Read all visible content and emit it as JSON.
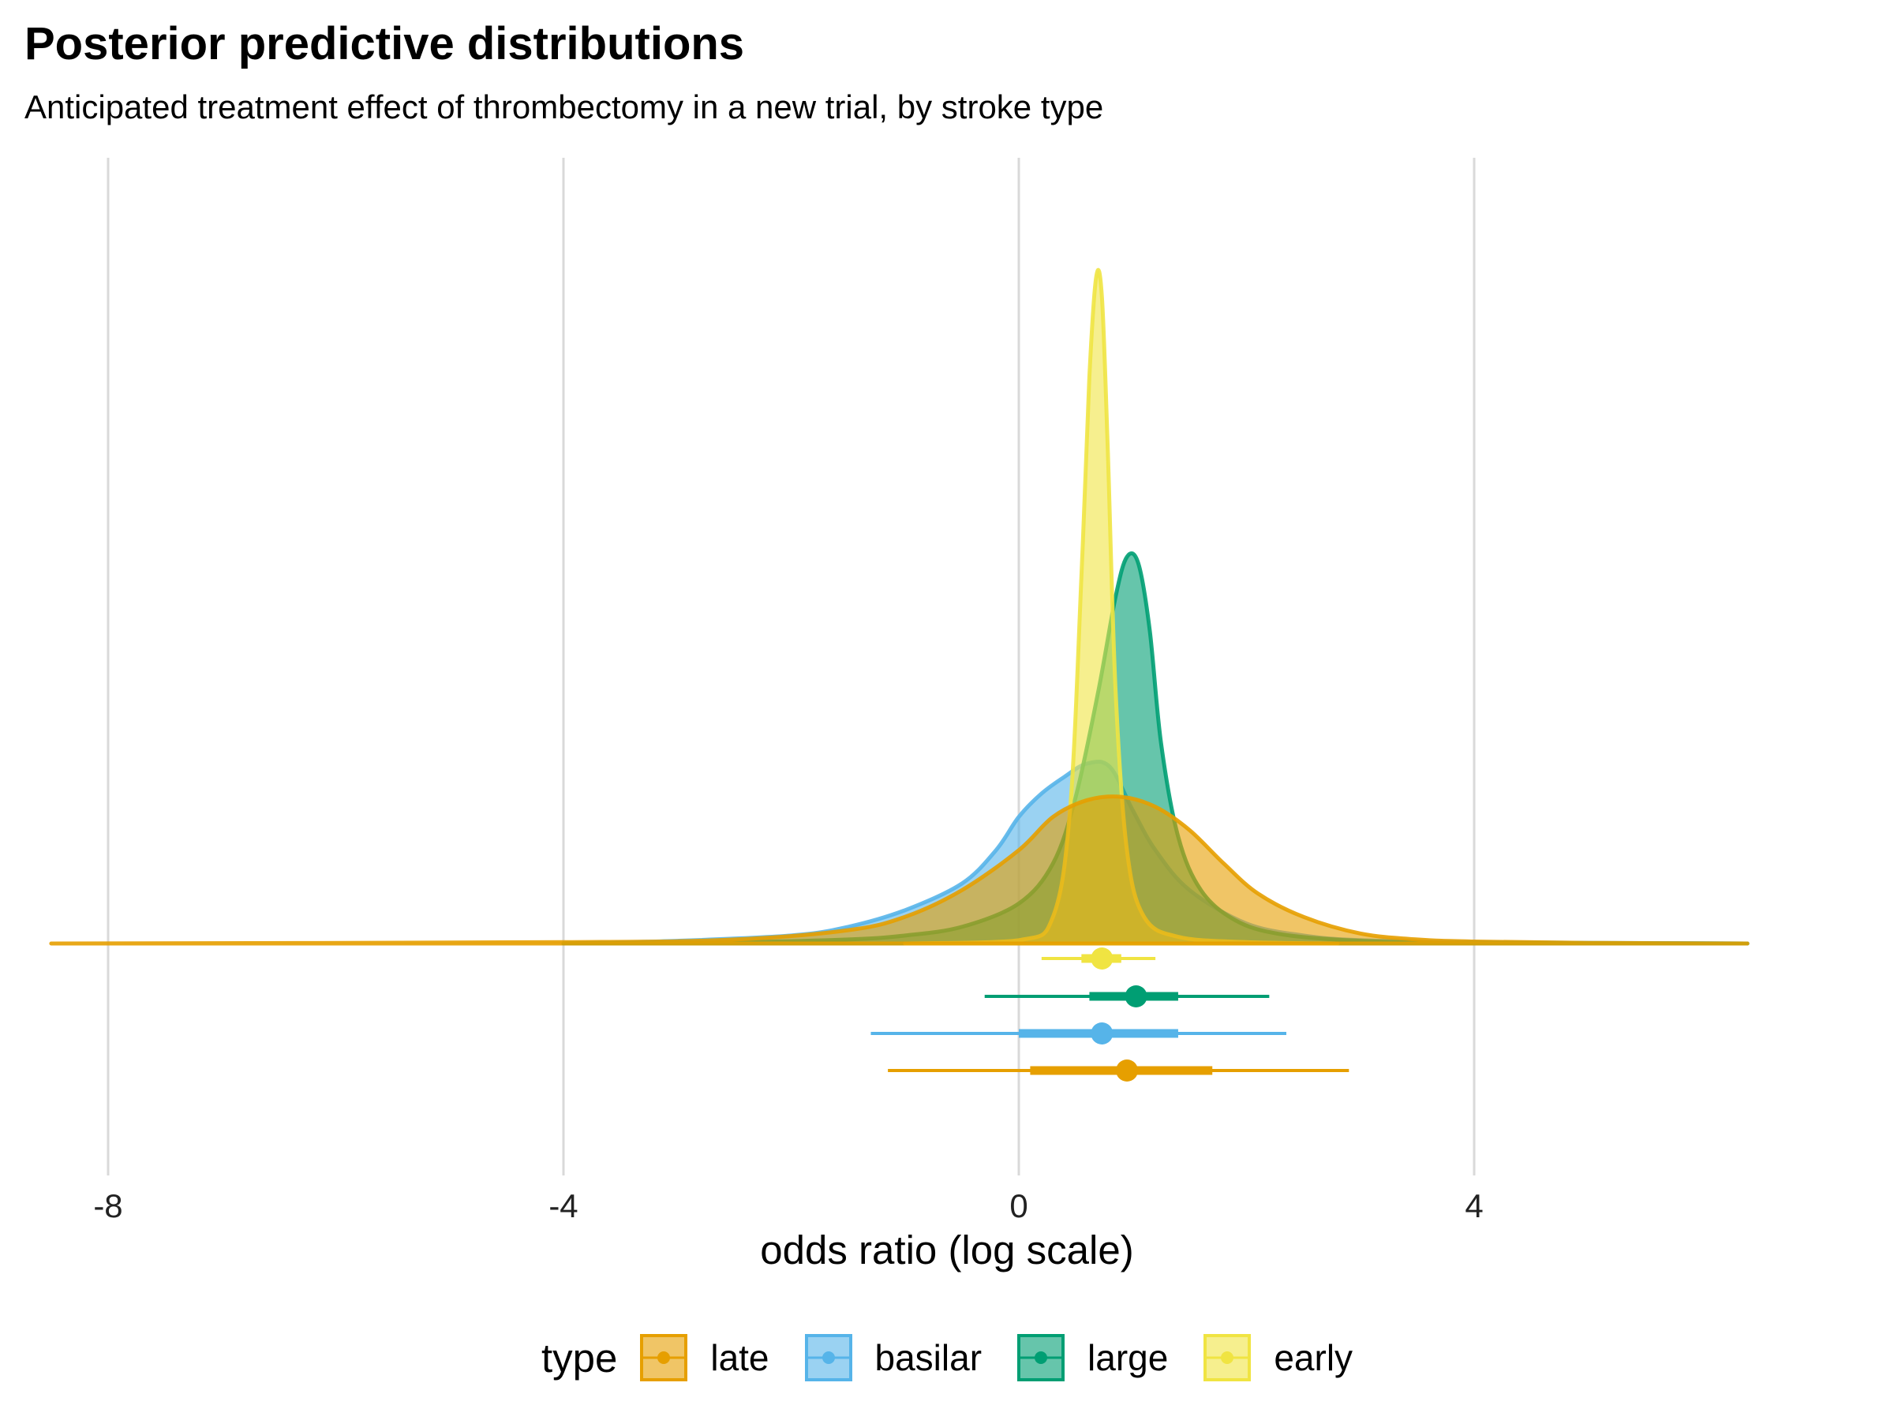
{
  "chart_data": {
    "type": "area",
    "title": "Posterior predictive distributions",
    "subtitle": "Anticipated treatment effect of thrombectomy in a new trial, by stroke type",
    "xlabel": "odds ratio (log scale)",
    "ylabel": "",
    "xlim": [
      -8.5,
      6.4
    ],
    "x_ticks": [
      -8,
      -4,
      0,
      4
    ],
    "x_tick_labels": [
      "-8",
      "-4",
      "0",
      "4"
    ],
    "grid": "vertical-major",
    "legend": {
      "title": "type",
      "position": "bottom"
    },
    "series": [
      {
        "name": "late",
        "color": "#E69F00",
        "density": {
          "x": [
            -8.5,
            -4.0,
            -2.5,
            -1.5,
            -1.0,
            -0.5,
            0.0,
            0.3,
            0.6,
            0.9,
            1.2,
            1.5,
            1.8,
            2.1,
            2.5,
            3.0,
            3.5,
            4.0,
            5.0,
            6.4
          ],
          "y": [
            0.0,
            0.002,
            0.006,
            0.02,
            0.04,
            0.08,
            0.14,
            0.19,
            0.215,
            0.22,
            0.205,
            0.17,
            0.12,
            0.075,
            0.04,
            0.015,
            0.006,
            0.003,
            0.001,
            0.0
          ]
        },
        "interval": {
          "point": 0.95,
          "inner": [
            0.1,
            1.7
          ],
          "outer": [
            -1.15,
            2.9
          ]
        }
      },
      {
        "name": "basilar",
        "color": "#56B4E9",
        "density": {
          "x": [
            -4.0,
            -3.0,
            -2.0,
            -1.5,
            -1.0,
            -0.5,
            -0.2,
            0.0,
            0.2,
            0.4,
            0.6,
            0.8,
            1.0,
            1.2,
            1.5,
            2.0,
            2.5,
            3.0,
            4.0,
            6.4
          ],
          "y": [
            0.0,
            0.004,
            0.012,
            0.025,
            0.05,
            0.09,
            0.14,
            0.19,
            0.225,
            0.25,
            0.27,
            0.265,
            0.2,
            0.14,
            0.08,
            0.03,
            0.012,
            0.005,
            0.002,
            0.0
          ]
        },
        "interval": {
          "point": 0.73,
          "inner": [
            0.0,
            1.4
          ],
          "outer": [
            -1.3,
            2.35
          ]
        }
      },
      {
        "name": "large",
        "color": "#009E73",
        "density": {
          "x": [
            -4.0,
            -2.5,
            -1.5,
            -1.0,
            -0.5,
            0.0,
            0.3,
            0.5,
            0.7,
            0.85,
            0.95,
            1.05,
            1.15,
            1.25,
            1.4,
            1.6,
            1.9,
            2.3,
            3.0,
            4.0,
            6.4
          ],
          "y": [
            0.0,
            0.002,
            0.006,
            0.012,
            0.025,
            0.06,
            0.12,
            0.22,
            0.38,
            0.52,
            0.58,
            0.57,
            0.47,
            0.3,
            0.16,
            0.08,
            0.035,
            0.014,
            0.004,
            0.001,
            0.0
          ]
        },
        "interval": {
          "point": 1.03,
          "inner": [
            0.62,
            1.4
          ],
          "outer": [
            -0.3,
            2.2
          ]
        }
      },
      {
        "name": "early",
        "color": "#F0E442",
        "density": {
          "x": [
            -1.0,
            0.0,
            0.3,
            0.45,
            0.55,
            0.62,
            0.68,
            0.73,
            0.78,
            0.85,
            0.95,
            1.1,
            1.4,
            2.0,
            2.8
          ],
          "y": [
            0.0,
            0.005,
            0.04,
            0.2,
            0.55,
            0.85,
            1.0,
            0.97,
            0.75,
            0.38,
            0.14,
            0.04,
            0.01,
            0.002,
            0.0
          ]
        },
        "interval": {
          "point": 0.73,
          "inner": [
            0.55,
            0.9
          ],
          "outer": [
            0.2,
            1.2
          ]
        }
      }
    ]
  }
}
